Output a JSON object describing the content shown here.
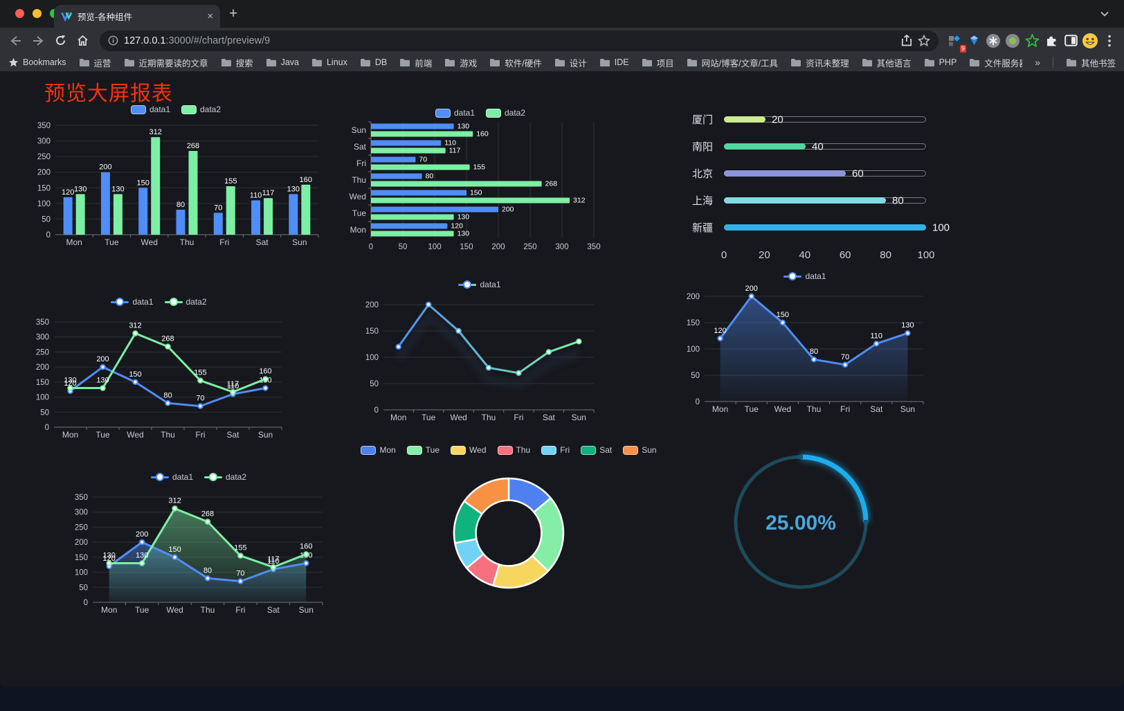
{
  "browser": {
    "tab_title": "预览-各种组件",
    "tab_close": "×",
    "new_tab": "+",
    "url_host": "127.0.0.1",
    "url_rest": ":3000/#/chart/preview/9",
    "extension_badge": "9",
    "bookmarks_label": "Bookmarks",
    "bookmarks": [
      "运营",
      "近期需要读的文章",
      "搜索",
      "Java",
      "Linux",
      "DB",
      "前端",
      "游戏",
      "软件/硬件",
      "设计",
      "IDE",
      "项目",
      "网站/博客/文章/工具",
      "资讯未整理",
      "其他语言",
      "PHP",
      "文件服务器"
    ],
    "bookmarks_overflow": "»",
    "other_bookmarks": "其他书签"
  },
  "page": {
    "title": "预览大屏报表",
    "title_color": "#f5300f",
    "background": "#17181d"
  },
  "chart_data": [
    {
      "id": "bar-grouped",
      "type": "bar",
      "categories": [
        "Mon",
        "Tue",
        "Wed",
        "Thu",
        "Fri",
        "Sat",
        "Sun"
      ],
      "series": [
        {
          "name": "data1",
          "color": "#4f8df7",
          "values": [
            120,
            200,
            150,
            80,
            70,
            110,
            130
          ]
        },
        {
          "name": "data2",
          "color": "#7cefa5",
          "values": [
            130,
            130,
            312,
            268,
            155,
            117,
            160
          ]
        }
      ],
      "ylim": [
        0,
        350
      ],
      "ytick": 50,
      "legend_position": "top",
      "grid": true
    },
    {
      "id": "bar-horizontal",
      "type": "bar-horizontal",
      "categories": [
        "Mon",
        "Tue",
        "Wed",
        "Thu",
        "Fri",
        "Sat",
        "Sun"
      ],
      "series": [
        {
          "name": "data1",
          "color": "#4f8df7",
          "values": [
            120,
            200,
            150,
            80,
            70,
            110,
            130
          ]
        },
        {
          "name": "data2",
          "color": "#7cefa5",
          "values": [
            130,
            130,
            312,
            268,
            155,
            117,
            160
          ]
        }
      ],
      "xlim": [
        0,
        350
      ],
      "xtick": 50,
      "legend_position": "top",
      "grid": true
    },
    {
      "id": "progress",
      "type": "progress-bars",
      "max": 100,
      "axis_ticks": [
        0,
        20,
        40,
        60,
        80,
        100
      ],
      "rows": [
        {
          "label": "厦门",
          "value": 20,
          "color": "#cdeb8f"
        },
        {
          "label": "南阳",
          "value": 40,
          "color": "#52d6a0"
        },
        {
          "label": "北京",
          "value": 60,
          "color": "#8d95dd"
        },
        {
          "label": "上海",
          "value": 80,
          "color": "#7fdce2"
        },
        {
          "label": "新疆",
          "value": 100,
          "color": "#35b0e4"
        }
      ]
    },
    {
      "id": "line-two",
      "type": "line",
      "categories": [
        "Mon",
        "Tue",
        "Wed",
        "Thu",
        "Fri",
        "Sat",
        "Sun"
      ],
      "series": [
        {
          "name": "data1",
          "color": "#4f8df7",
          "values": [
            120,
            200,
            150,
            80,
            70,
            110,
            130
          ]
        },
        {
          "name": "data2",
          "color": "#7cefa5",
          "values": [
            130,
            130,
            312,
            268,
            155,
            117,
            160
          ]
        }
      ],
      "ylim": [
        0,
        350
      ],
      "ytick": 50,
      "show_labels": true,
      "legend_position": "top"
    },
    {
      "id": "line-gradient",
      "type": "line",
      "categories": [
        "Mon",
        "Tue",
        "Wed",
        "Thu",
        "Fri",
        "Sat",
        "Sun"
      ],
      "series": [
        {
          "name": "data1",
          "gradient": [
            "#4f8df7",
            "#7cefa5"
          ],
          "values": [
            120,
            200,
            150,
            80,
            70,
            110,
            130
          ]
        }
      ],
      "ylim": [
        0,
        200
      ],
      "ytick": 50,
      "show_labels": false,
      "shadow": true,
      "legend_position": "top"
    },
    {
      "id": "line-area",
      "type": "line",
      "categories": [
        "Mon",
        "Tue",
        "Wed",
        "Thu",
        "Fri",
        "Sat",
        "Sun"
      ],
      "series": [
        {
          "name": "data1",
          "color": "#4f8df7",
          "area": true,
          "values": [
            120,
            200,
            150,
            80,
            70,
            110,
            130
          ]
        }
      ],
      "ylim": [
        0,
        200
      ],
      "ytick": 50,
      "show_labels": true,
      "legend_position": "top"
    },
    {
      "id": "line-area-two",
      "type": "line",
      "categories": [
        "Mon",
        "Tue",
        "Wed",
        "Thu",
        "Fri",
        "Sat",
        "Sun"
      ],
      "series": [
        {
          "name": "data1",
          "color": "#4f8df7",
          "area": true,
          "values": [
            120,
            200,
            150,
            80,
            70,
            110,
            130
          ]
        },
        {
          "name": "data2",
          "color": "#7cefa5",
          "area": true,
          "values": [
            130,
            130,
            312,
            268,
            155,
            117,
            160
          ]
        }
      ],
      "ylim": [
        0,
        350
      ],
      "ytick": 50,
      "show_labels": true,
      "legend_position": "top"
    },
    {
      "id": "donut",
      "type": "pie",
      "categories": [
        "Mon",
        "Tue",
        "Wed",
        "Thu",
        "Fri",
        "Sat",
        "Sun"
      ],
      "values": [
        120,
        200,
        150,
        80,
        70,
        110,
        130
      ],
      "colors": [
        "#4f80f0",
        "#85eda6",
        "#f7d660",
        "#f7707f",
        "#70d3f5",
        "#10b27e",
        "#f79143"
      ],
      "legend_position": "top",
      "inner_radius_ratio": 0.6
    },
    {
      "id": "gauge",
      "type": "gauge",
      "label": "25.00%",
      "percent": 25,
      "arc_color": "#1badee",
      "track_color": "#1d4b59",
      "text_color": "#4aa6d9"
    }
  ]
}
